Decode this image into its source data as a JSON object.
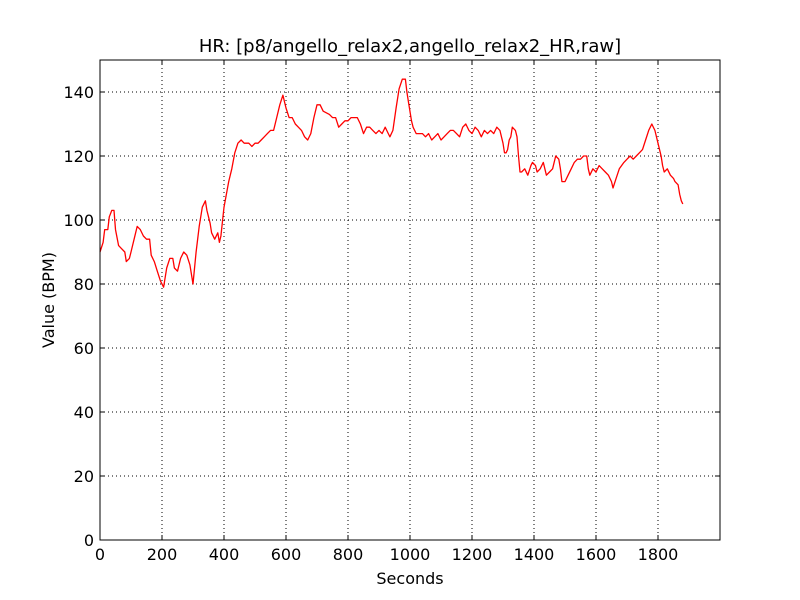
{
  "chart_data": {
    "type": "line",
    "title": "HR: [p8/angello_relax2,angello_relax2_HR,raw]",
    "xlabel": "Seconds",
    "ylabel": "Value (BPM)",
    "xlim": [
      0,
      2000
    ],
    "ylim": [
      0,
      150
    ],
    "xticks": [
      0,
      200,
      400,
      600,
      800,
      1000,
      1200,
      1400,
      1600,
      1800
    ],
    "yticks": [
      0,
      20,
      40,
      60,
      80,
      100,
      120,
      140
    ],
    "grid": true,
    "legend": "none",
    "series": [
      {
        "color": "#ff0000",
        "points": [
          [
            0,
            90
          ],
          [
            10,
            93
          ],
          [
            15,
            97
          ],
          [
            25,
            97
          ],
          [
            30,
            101
          ],
          [
            38,
            103
          ],
          [
            45,
            103
          ],
          [
            50,
            97
          ],
          [
            60,
            92
          ],
          [
            70,
            91
          ],
          [
            80,
            90
          ],
          [
            85,
            87
          ],
          [
            95,
            88
          ],
          [
            100,
            90
          ],
          [
            110,
            94
          ],
          [
            120,
            98
          ],
          [
            130,
            97
          ],
          [
            140,
            95
          ],
          [
            150,
            94
          ],
          [
            160,
            94
          ],
          [
            165,
            89
          ],
          [
            175,
            87
          ],
          [
            185,
            84
          ],
          [
            195,
            81
          ],
          [
            205,
            79
          ],
          [
            215,
            85
          ],
          [
            225,
            88
          ],
          [
            235,
            88
          ],
          [
            240,
            85
          ],
          [
            250,
            84
          ],
          [
            260,
            88
          ],
          [
            270,
            90
          ],
          [
            280,
            89
          ],
          [
            290,
            86
          ],
          [
            300,
            80
          ],
          [
            310,
            90
          ],
          [
            320,
            98
          ],
          [
            330,
            104
          ],
          [
            340,
            106
          ],
          [
            345,
            103
          ],
          [
            355,
            99
          ],
          [
            360,
            96
          ],
          [
            370,
            94
          ],
          [
            380,
            96
          ],
          [
            385,
            93
          ],
          [
            390,
            95
          ],
          [
            400,
            104
          ],
          [
            415,
            112
          ],
          [
            425,
            116
          ],
          [
            435,
            121
          ],
          [
            445,
            124
          ],
          [
            455,
            125
          ],
          [
            465,
            124
          ],
          [
            480,
            124
          ],
          [
            490,
            123
          ],
          [
            500,
            124
          ],
          [
            510,
            124
          ],
          [
            520,
            125
          ],
          [
            530,
            126
          ],
          [
            540,
            127
          ],
          [
            550,
            128
          ],
          [
            560,
            128
          ],
          [
            570,
            132
          ],
          [
            580,
            136
          ],
          [
            590,
            139
          ],
          [
            600,
            135
          ],
          [
            610,
            132
          ],
          [
            620,
            132
          ],
          [
            630,
            130
          ],
          [
            640,
            129
          ],
          [
            650,
            128
          ],
          [
            660,
            126
          ],
          [
            670,
            125
          ],
          [
            680,
            127
          ],
          [
            690,
            132
          ],
          [
            700,
            136
          ],
          [
            710,
            136
          ],
          [
            720,
            134
          ],
          [
            740,
            133
          ],
          [
            750,
            132
          ],
          [
            760,
            132
          ],
          [
            770,
            129
          ],
          [
            780,
            130
          ],
          [
            790,
            131
          ],
          [
            800,
            131
          ],
          [
            810,
            132
          ],
          [
            820,
            132
          ],
          [
            830,
            132
          ],
          [
            840,
            130
          ],
          [
            850,
            127
          ],
          [
            860,
            129
          ],
          [
            870,
            129
          ],
          [
            880,
            128
          ],
          [
            890,
            127
          ],
          [
            900,
            128
          ],
          [
            910,
            127
          ],
          [
            920,
            129
          ],
          [
            930,
            127
          ],
          [
            935,
            126
          ],
          [
            945,
            128
          ],
          [
            955,
            135
          ],
          [
            965,
            141
          ],
          [
            975,
            144
          ],
          [
            985,
            144
          ],
          [
            990,
            140
          ],
          [
            995,
            137
          ],
          [
            1005,
            131
          ],
          [
            1010,
            129
          ],
          [
            1020,
            127
          ],
          [
            1030,
            127
          ],
          [
            1040,
            127
          ],
          [
            1050,
            126
          ],
          [
            1060,
            127
          ],
          [
            1070,
            125
          ],
          [
            1080,
            126
          ],
          [
            1090,
            127
          ],
          [
            1100,
            125
          ],
          [
            1110,
            126
          ],
          [
            1120,
            127
          ],
          [
            1130,
            128
          ],
          [
            1140,
            128
          ],
          [
            1150,
            127
          ],
          [
            1160,
            126
          ],
          [
            1170,
            129
          ],
          [
            1180,
            130
          ],
          [
            1190,
            128
          ],
          [
            1200,
            127
          ],
          [
            1210,
            129
          ],
          [
            1220,
            128
          ],
          [
            1230,
            126
          ],
          [
            1240,
            128
          ],
          [
            1250,
            127
          ],
          [
            1260,
            128
          ],
          [
            1270,
            127
          ],
          [
            1280,
            129
          ],
          [
            1290,
            128
          ],
          [
            1300,
            124
          ],
          [
            1305,
            121
          ],
          [
            1310,
            121
          ],
          [
            1315,
            122
          ],
          [
            1320,
            125
          ],
          [
            1325,
            126
          ],
          [
            1330,
            129
          ],
          [
            1340,
            128
          ],
          [
            1345,
            126
          ],
          [
            1350,
            120
          ],
          [
            1355,
            115
          ],
          [
            1360,
            115
          ],
          [
            1370,
            116
          ],
          [
            1380,
            114
          ],
          [
            1390,
            117
          ],
          [
            1395,
            118
          ],
          [
            1405,
            117
          ],
          [
            1410,
            115
          ],
          [
            1420,
            116
          ],
          [
            1430,
            118
          ],
          [
            1440,
            114
          ],
          [
            1450,
            115
          ],
          [
            1460,
            116
          ],
          [
            1470,
            120
          ],
          [
            1480,
            119
          ],
          [
            1485,
            116
          ],
          [
            1490,
            112
          ],
          [
            1500,
            112
          ],
          [
            1510,
            114
          ],
          [
            1520,
            116
          ],
          [
            1530,
            118
          ],
          [
            1540,
            119
          ],
          [
            1550,
            119
          ],
          [
            1560,
            120
          ],
          [
            1570,
            120
          ],
          [
            1575,
            116
          ],
          [
            1580,
            114
          ],
          [
            1590,
            116
          ],
          [
            1600,
            115
          ],
          [
            1610,
            117
          ],
          [
            1620,
            116
          ],
          [
            1630,
            115
          ],
          [
            1640,
            114
          ],
          [
            1650,
            112
          ],
          [
            1655,
            110
          ],
          [
            1665,
            113
          ],
          [
            1675,
            116
          ],
          [
            1690,
            118
          ],
          [
            1700,
            119
          ],
          [
            1710,
            120
          ],
          [
            1720,
            119
          ],
          [
            1730,
            120
          ],
          [
            1740,
            121
          ],
          [
            1750,
            122
          ],
          [
            1760,
            125
          ],
          [
            1770,
            128
          ],
          [
            1780,
            130
          ],
          [
            1790,
            128
          ],
          [
            1800,
            124
          ],
          [
            1810,
            120
          ],
          [
            1815,
            117
          ],
          [
            1820,
            115
          ],
          [
            1830,
            116
          ],
          [
            1840,
            114
          ],
          [
            1850,
            113
          ],
          [
            1855,
            112
          ],
          [
            1865,
            111
          ],
          [
            1870,
            108
          ],
          [
            1875,
            106
          ],
          [
            1880,
            105
          ]
        ]
      }
    ]
  }
}
